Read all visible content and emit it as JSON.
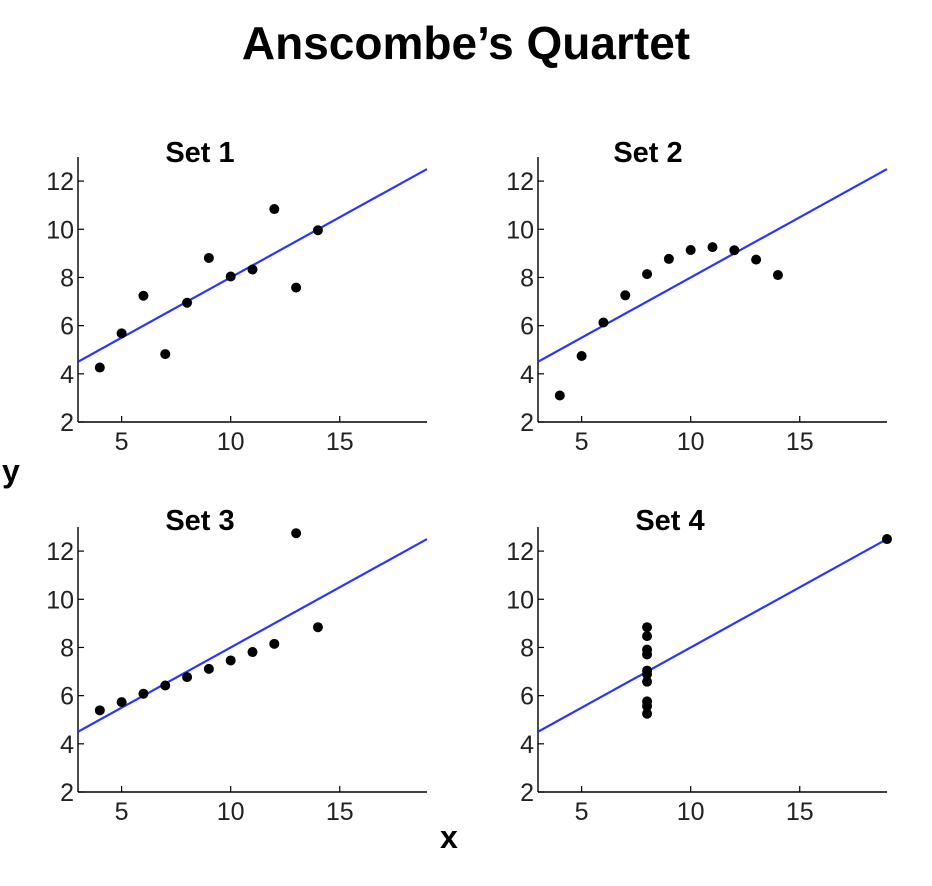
{
  "title": "Anscombe’s Quartet",
  "xlabel": "x",
  "ylabel": "y",
  "colors": {
    "fit_line": "#2a35ff",
    "points": "#000000",
    "axes": "#000000"
  },
  "chart_data": [
    {
      "type": "scatter",
      "title": "Set 1",
      "xlim": [
        3,
        19
      ],
      "ylim": [
        2,
        13
      ],
      "xticks": [
        5,
        10,
        15
      ],
      "yticks": [
        2,
        4,
        6,
        8,
        10,
        12
      ],
      "x": [
        4,
        5,
        6,
        7,
        8,
        9,
        10,
        11,
        12,
        13,
        14
      ],
      "y": [
        4.26,
        5.68,
        7.24,
        4.82,
        6.95,
        8.81,
        8.04,
        8.33,
        10.84,
        7.58,
        9.96
      ],
      "fit": {
        "intercept": 3.0,
        "slope": 0.5
      }
    },
    {
      "type": "scatter",
      "title": "Set 2",
      "xlim": [
        3,
        19
      ],
      "ylim": [
        2,
        13
      ],
      "xticks": [
        5,
        10,
        15
      ],
      "yticks": [
        2,
        4,
        6,
        8,
        10,
        12
      ],
      "x": [
        4,
        5,
        6,
        7,
        8,
        9,
        10,
        11,
        12,
        13,
        14
      ],
      "y": [
        3.1,
        4.74,
        6.13,
        7.26,
        8.14,
        8.77,
        9.14,
        9.26,
        9.13,
        8.74,
        8.1
      ],
      "fit": {
        "intercept": 3.0,
        "slope": 0.5
      }
    },
    {
      "type": "scatter",
      "title": "Set 3",
      "xlim": [
        3,
        19
      ],
      "ylim": [
        2,
        13
      ],
      "xticks": [
        5,
        10,
        15
      ],
      "yticks": [
        2,
        4,
        6,
        8,
        10,
        12
      ],
      "x": [
        4,
        5,
        6,
        7,
        8,
        9,
        10,
        11,
        12,
        13,
        14
      ],
      "y": [
        5.39,
        5.73,
        6.08,
        6.42,
        6.77,
        7.11,
        7.46,
        7.81,
        8.15,
        12.74,
        8.84
      ],
      "fit": {
        "intercept": 3.0,
        "slope": 0.5
      }
    },
    {
      "type": "scatter",
      "title": "Set 4",
      "xlim": [
        3,
        19
      ],
      "ylim": [
        2,
        13
      ],
      "xticks": [
        5,
        10,
        15
      ],
      "yticks": [
        2,
        4,
        6,
        8,
        10,
        12
      ],
      "x": [
        8,
        8,
        8,
        8,
        8,
        8,
        8,
        8,
        8,
        8,
        19
      ],
      "y": [
        5.25,
        5.56,
        5.76,
        6.58,
        6.89,
        7.04,
        7.71,
        7.91,
        8.47,
        8.84,
        12.5
      ],
      "fit": {
        "intercept": 3.0,
        "slope": 0.5
      }
    }
  ]
}
